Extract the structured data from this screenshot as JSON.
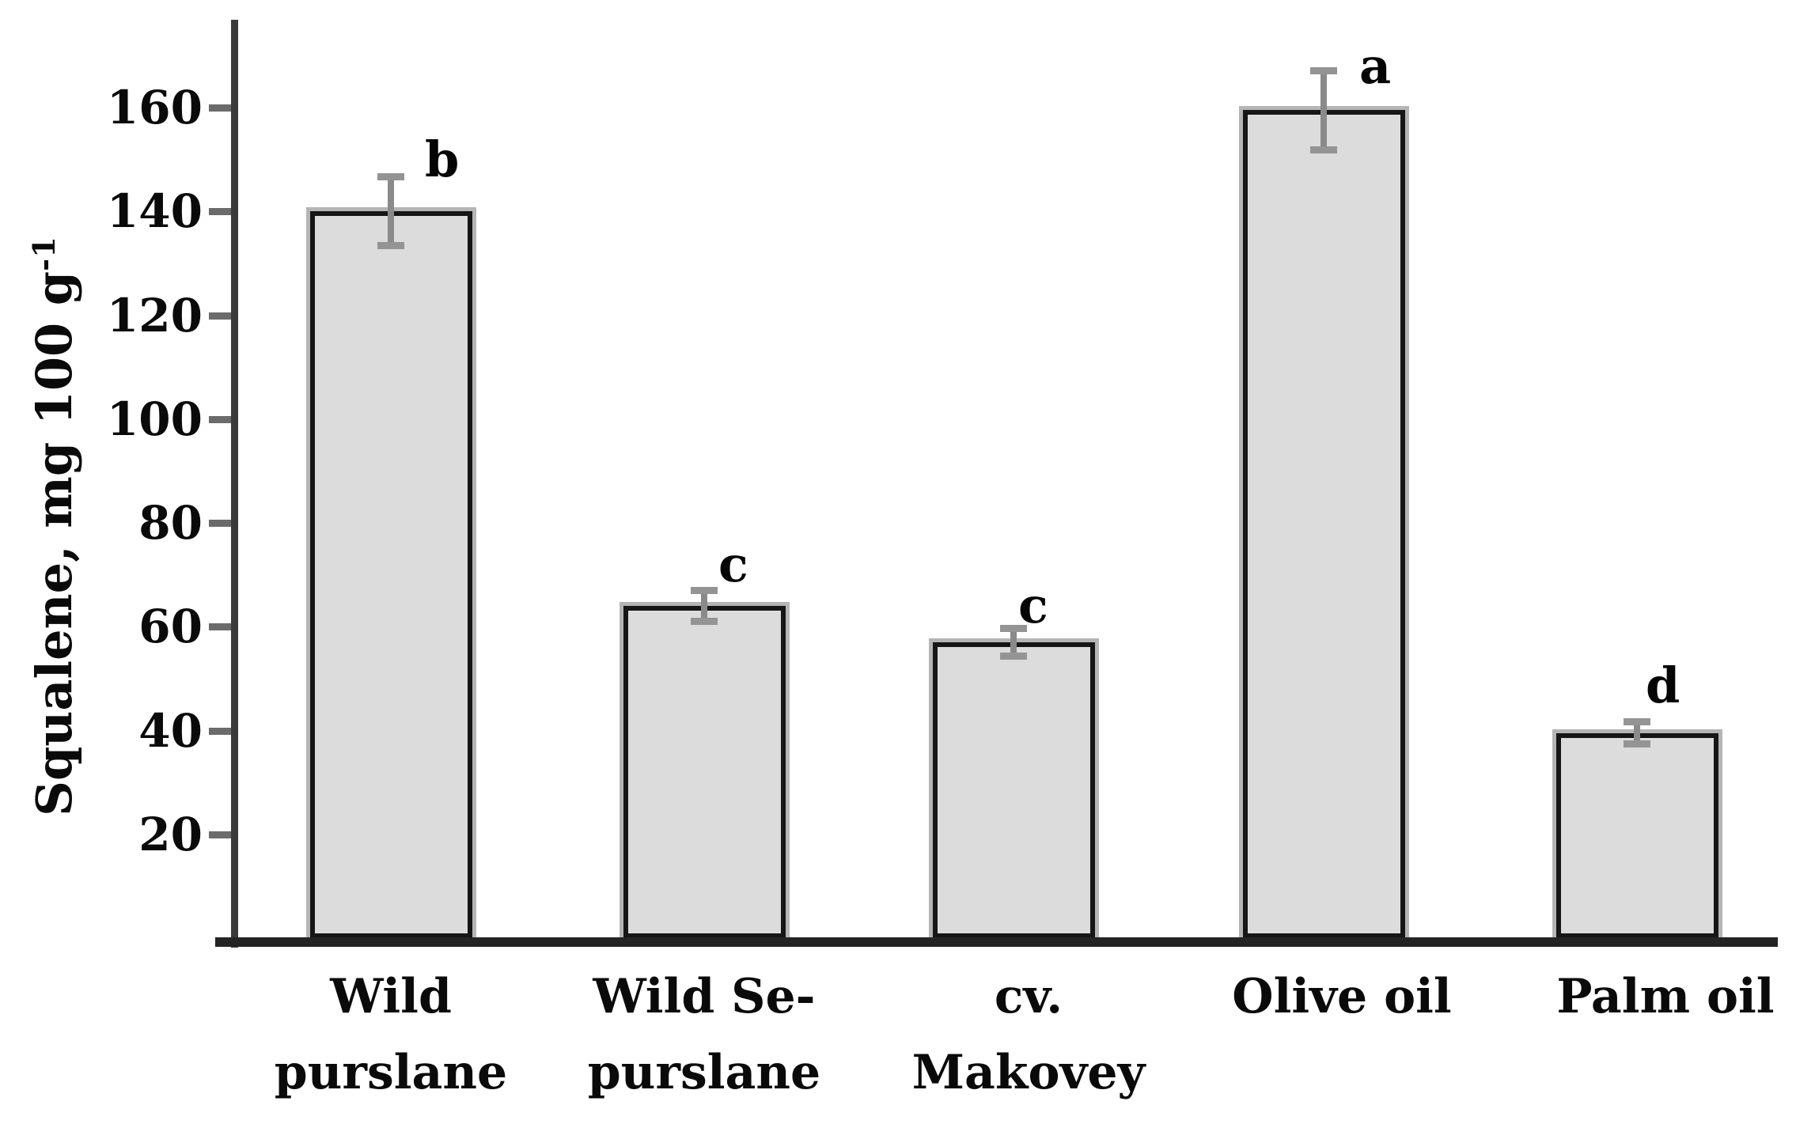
{
  "figure": {
    "background_color": "#ffffff",
    "title": ""
  },
  "y_axis": {
    "label_main": "Squalene, mg 100 g",
    "label_superscript": "-1",
    "ticks": [
      160,
      140,
      120,
      100,
      80,
      60,
      40,
      20
    ]
  },
  "chart_data": {
    "type": "bar",
    "title": "",
    "xlabel": "",
    "ylabel": "Squalene, mg 100 g⁻¹",
    "ylim": [
      0,
      177
    ],
    "ytick_interval": 20,
    "grid": false,
    "legend": false,
    "categories": [
      "Wild purslane",
      "Wild Se-purslane",
      "cv. Makovey",
      "Olive oil",
      "Palm oil"
    ],
    "category_lines": [
      [
        "Wild",
        "purslane"
      ],
      [
        "Wild Se-",
        "purslane"
      ],
      [
        "cv.",
        "Makovey"
      ],
      [
        "Olive oil"
      ],
      [
        "Palm oil"
      ]
    ],
    "values": [
      140,
      64,
      57,
      159.5,
      39.5
    ],
    "errors": [
      7,
      3.3,
      3,
      8,
      2.5
    ],
    "sig_letters": [
      "b",
      "c",
      "c",
      "a",
      "d"
    ],
    "bar_fill_color": "#dcdcdc",
    "bar_border_color": "#161616",
    "bar_shadow_color": "#b5b5b5",
    "error_bar_color": "#8a8a8a",
    "axis_color": "#3a3a3a",
    "text_color": "#0a0a0a"
  }
}
